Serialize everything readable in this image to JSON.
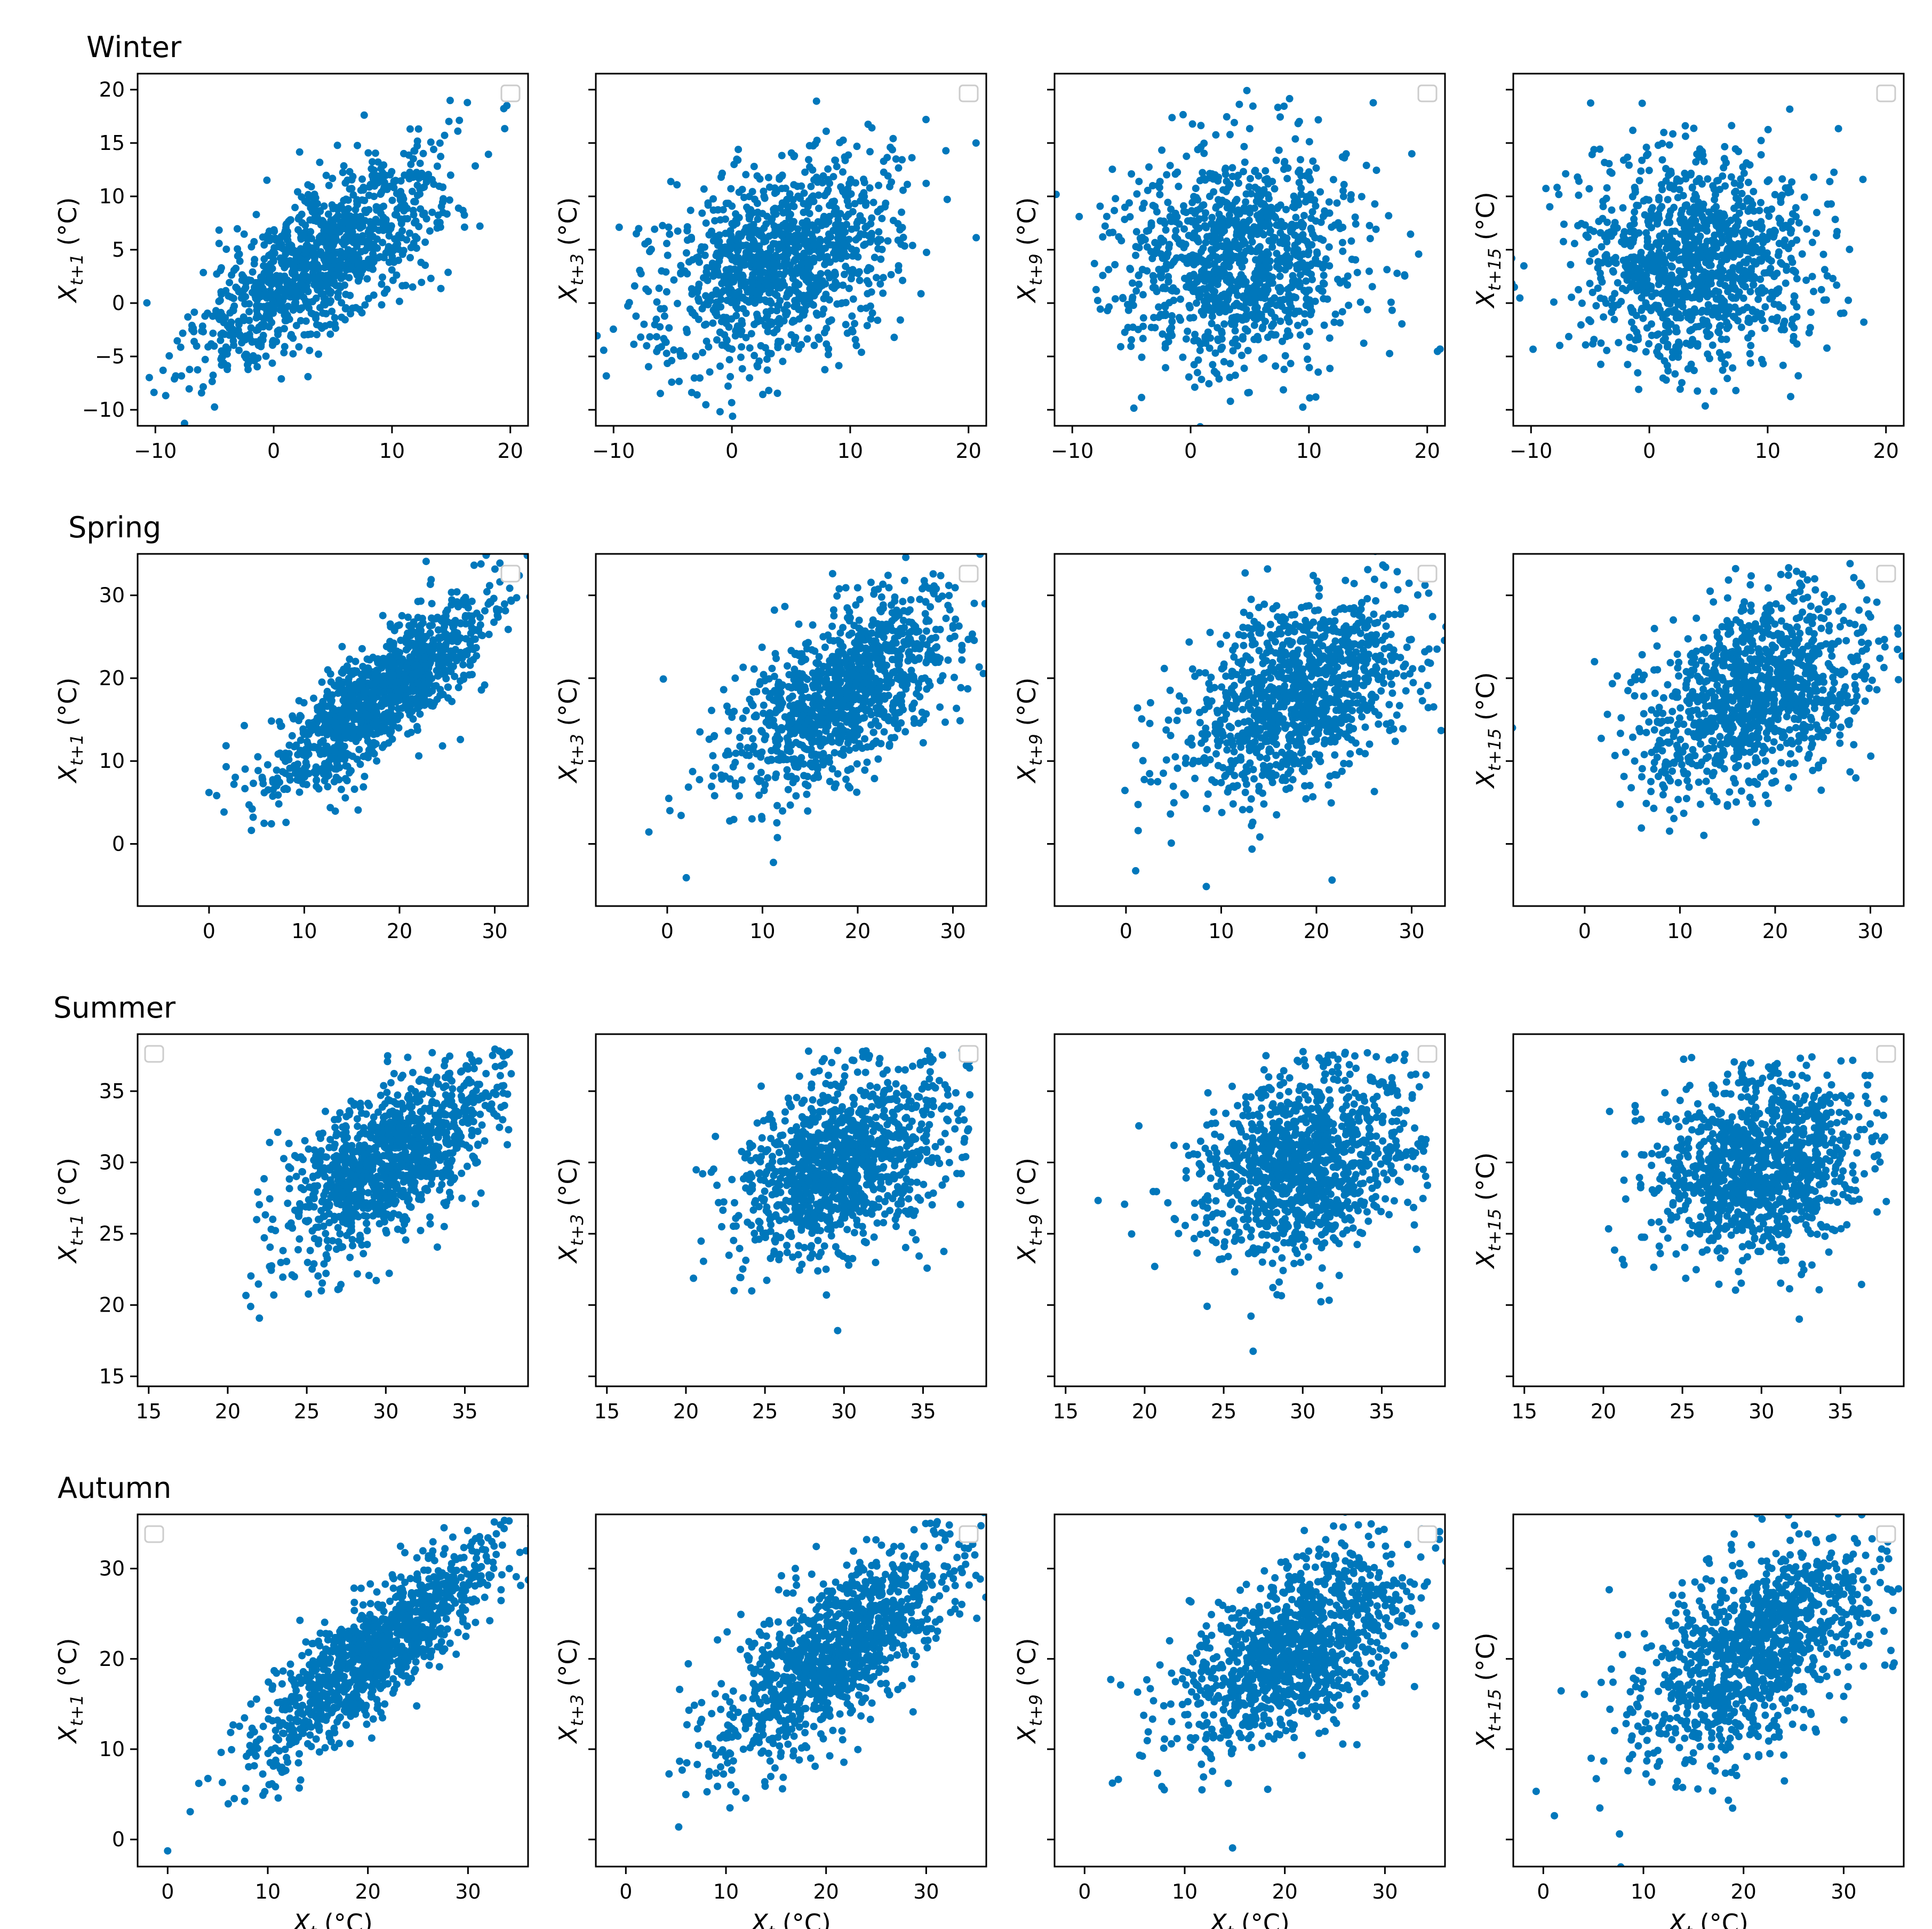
{
  "figure": {
    "point_color": "#0077bb",
    "row_titles": [
      "Winter",
      "Spring",
      "Summer",
      "Autumn"
    ],
    "ylabel_subscripts": [
      "t+1",
      "t+3",
      "t+9",
      "t+15"
    ],
    "xlabel_subscript": "t",
    "var_symbol": "X",
    "unit": "(°C)"
  },
  "chart_data": [
    {
      "type": "scatter",
      "season": "Winter",
      "xlim": [
        -11.5,
        21.5
      ],
      "ylim": [
        -11.5,
        21.5
      ],
      "xticks": [
        -10,
        0,
        10,
        20
      ],
      "yticks": [
        -10,
        -5,
        0,
        5,
        10,
        15,
        20
      ],
      "xtick_labels": [
        "−10",
        "0",
        "10",
        "20"
      ],
      "ytick_labels": [
        "−10",
        "−5",
        "0",
        "5",
        "10",
        "15",
        "20"
      ],
      "mean": 4,
      "sd": 5.0,
      "lags": [
        {
          "lag": "t+1",
          "r": 0.72
        },
        {
          "lag": "t+3",
          "r": 0.38
        },
        {
          "lag": "t+9",
          "r": 0.05
        },
        {
          "lag": "t+15",
          "r": 0.02
        }
      ]
    },
    {
      "type": "scatter",
      "season": "Spring",
      "xlim": [
        -7.5,
        33.5
      ],
      "ylim": [
        -7.5,
        35
      ],
      "xticks": [
        0,
        10,
        20,
        30
      ],
      "yticks": [
        0,
        10,
        20,
        30
      ],
      "xtick_labels": [
        "0",
        "10",
        "20",
        "30"
      ],
      "ytick_labels": [
        "0",
        "10",
        "20",
        "30"
      ],
      "mean": 18,
      "sd": 6.0,
      "lags": [
        {
          "lag": "t+1",
          "r": 0.83
        },
        {
          "lag": "t+3",
          "r": 0.6
        },
        {
          "lag": "t+9",
          "r": 0.45
        },
        {
          "lag": "t+15",
          "r": 0.4
        }
      ]
    },
    {
      "type": "scatter",
      "season": "Summer",
      "xlim": [
        14.3,
        39
      ],
      "ylim": [
        14.3,
        39
      ],
      "xticks": [
        15,
        20,
        25,
        30,
        35
      ],
      "yticks": [
        15,
        20,
        25,
        30,
        35
      ],
      "xtick_labels": [
        "15",
        "20",
        "25",
        "30",
        "35"
      ],
      "ytick_labels": [
        "15",
        "20",
        "25",
        "30",
        "35"
      ],
      "mean": 30,
      "sd": 3.3,
      "lags": [
        {
          "lag": "t+1",
          "r": 0.65
        },
        {
          "lag": "t+3",
          "r": 0.4
        },
        {
          "lag": "t+9",
          "r": 0.25
        },
        {
          "lag": "t+15",
          "r": 0.15
        }
      ]
    },
    {
      "type": "scatter",
      "season": "Autumn",
      "xlim": [
        -3,
        36
      ],
      "ylim": [
        -3,
        36
      ],
      "xticks": [
        0,
        10,
        20,
        30
      ],
      "yticks": [
        0,
        10,
        20,
        30
      ],
      "xtick_labels": [
        "0",
        "10",
        "20",
        "30"
      ],
      "ytick_labels": [
        "0",
        "10",
        "20",
        "30"
      ],
      "mean": 21,
      "sd": 6.0,
      "lags": [
        {
          "lag": "t+1",
          "r": 0.85
        },
        {
          "lag": "t+3",
          "r": 0.72
        },
        {
          "lag": "t+9",
          "r": 0.6
        },
        {
          "lag": "t+15",
          "r": 0.55
        }
      ]
    }
  ]
}
